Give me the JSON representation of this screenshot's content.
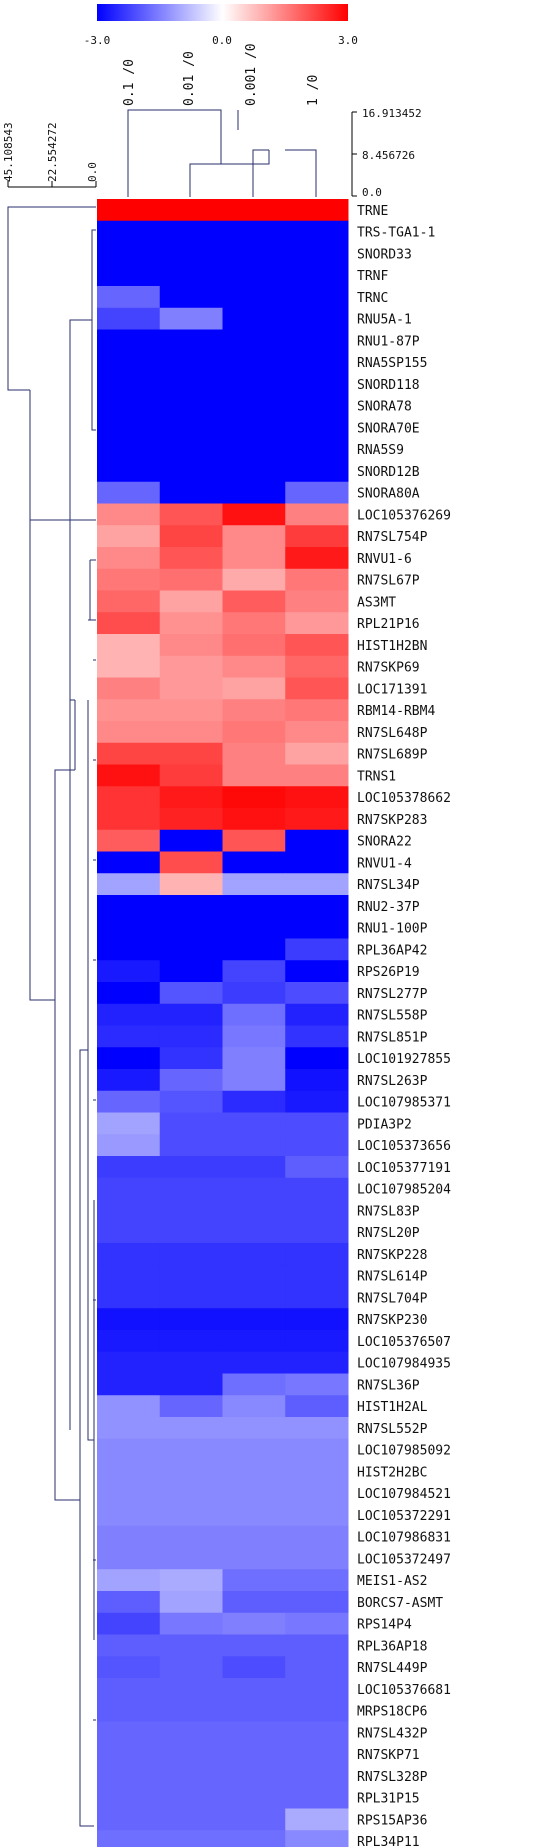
{
  "chart_data": {
    "type": "heatmap",
    "color_scale": {
      "min": -3.0,
      "mid": 0.0,
      "max": 3.0,
      "tick_labels": [
        "-3.0",
        "0.0",
        "3.0"
      ],
      "colors": {
        "low": "#0000ff",
        "mid": "#ffffff",
        "high": "#ff0000"
      }
    },
    "columns": [
      "0.1 /0",
      "0.01 /0",
      "0.001 /0",
      "1 /0"
    ],
    "col_dendrogram_ticks": [
      "16.913452",
      "8.456726",
      "0.0"
    ],
    "row_dendrogram_ticks": [
      "45.108543",
      "22.554272",
      "0.0"
    ],
    "rows": [
      "TRNE",
      "TRS-TGA1-1",
      "SNORD33",
      "TRNF",
      "TRNC",
      "RNU5A-1",
      "RNU1-87P",
      "RNA5SP155",
      "SNORD118",
      "SNORA78",
      "SNORA70E",
      "RNA5S9",
      "SNORD12B",
      "SNORA80A",
      "LOC105376269",
      "RN7SL754P",
      "RNVU1-6",
      "RN7SL67P",
      "AS3MT",
      "RPL21P16",
      "HIST1H2BN",
      "RN7SKP69",
      "LOC171391",
      "RBM14-RBM4",
      "RN7SL648P",
      "RN7SL689P",
      "TRNS1",
      "LOC105378662",
      "RN7SKP283",
      "SNORA22",
      "RNVU1-4",
      "RN7SL34P",
      "RNU2-37P",
      "RNU1-100P",
      "RPL36AP42",
      "RPS26P19",
      "RN7SL277P",
      "RN7SL558P",
      "RN7SL851P",
      "LOC101927855",
      "RN7SL263P",
      "LOC107985371",
      "PDIA3P2",
      "LOC105373656",
      "LOC105377191",
      "LOC107985204",
      "RN7SL83P",
      "RN7SL20P",
      "RN7SKP228",
      "RN7SL614P",
      "RN7SL704P",
      "RN7SKP230",
      "LOC105376507",
      "LOC107984935",
      "RN7SL36P",
      "HIST1H2AL",
      "RN7SL552P",
      "LOC107985092",
      "HIST2H2BC",
      "LOC107984521",
      "LOC105372291",
      "LOC107986831",
      "LOC105372497",
      "MEIS1-AS2",
      "BORCS7-ASMT",
      "RPS14P4",
      "RPL36AP18",
      "RN7SL449P",
      "LOC105376681",
      "MRPS18CP6",
      "RN7SL432P",
      "RN7SKP71",
      "RN7SL328P",
      "RPL31P15",
      "RPS15AP36",
      "RPL34P11"
    ],
    "values": [
      [
        3.0,
        3.0,
        3.0,
        3.0
      ],
      [
        -3.0,
        -3.0,
        -3.0,
        -3.0
      ],
      [
        -3.0,
        -3.0,
        -3.0,
        -3.0
      ],
      [
        -3.0,
        -3.0,
        -3.0,
        -3.0
      ],
      [
        -1.8,
        -3.0,
        -3.0,
        -3.0
      ],
      [
        -2.2,
        -1.5,
        -3.0,
        -3.0
      ],
      [
        -3.0,
        -3.0,
        -3.0,
        -3.0
      ],
      [
        -3.0,
        -3.0,
        -3.0,
        -3.0
      ],
      [
        -3.0,
        -3.0,
        -3.0,
        -3.0
      ],
      [
        -3.0,
        -3.0,
        -3.0,
        -3.0
      ],
      [
        -3.0,
        -3.0,
        -3.0,
        -3.0
      ],
      [
        -3.0,
        -3.0,
        -3.0,
        -3.0
      ],
      [
        -3.0,
        -3.0,
        -3.0,
        -3.0
      ],
      [
        -1.8,
        -3.0,
        -3.0,
        -1.8
      ],
      [
        1.4,
        2.0,
        2.8,
        1.5
      ],
      [
        1.1,
        2.2,
        1.4,
        2.3
      ],
      [
        1.4,
        2.0,
        1.4,
        2.7
      ],
      [
        1.6,
        1.7,
        1.0,
        1.6
      ],
      [
        1.8,
        1.1,
        1.9,
        1.5
      ],
      [
        2.1,
        1.3,
        1.6,
        1.2
      ],
      [
        0.9,
        1.4,
        1.7,
        2.0
      ],
      [
        0.9,
        1.2,
        1.4,
        1.8
      ],
      [
        1.5,
        1.2,
        1.1,
        2.0
      ],
      [
        1.3,
        1.3,
        1.5,
        1.6
      ],
      [
        1.4,
        1.4,
        1.6,
        1.4
      ],
      [
        2.2,
        2.2,
        1.5,
        1.1
      ],
      [
        2.8,
        2.3,
        1.5,
        1.5
      ],
      [
        2.4,
        2.7,
        2.9,
        2.8
      ],
      [
        2.4,
        2.6,
        2.8,
        2.7
      ],
      [
        1.9,
        -3.0,
        2.0,
        -3.0
      ],
      [
        -3.0,
        2.1,
        -3.0,
        -3.0
      ],
      [
        -1.1,
        0.9,
        -1.1,
        -1.1
      ],
      [
        -3.0,
        -3.0,
        -3.0,
        -3.0
      ],
      [
        -3.0,
        -3.0,
        -3.0,
        -3.0
      ],
      [
        -3.0,
        -3.0,
        -3.0,
        -2.3
      ],
      [
        -2.7,
        -3.0,
        -2.2,
        -3.0
      ],
      [
        -3.0,
        -2.0,
        -2.3,
        -2.1
      ],
      [
        -2.6,
        -2.6,
        -1.7,
        -2.6
      ],
      [
        -2.5,
        -2.5,
        -1.6,
        -2.4
      ],
      [
        -3.0,
        -2.4,
        -1.5,
        -3.0
      ],
      [
        -2.7,
        -1.8,
        -1.5,
        -2.8
      ],
      [
        -1.8,
        -2.0,
        -2.5,
        -2.7
      ],
      [
        -1.1,
        -2.1,
        -2.1,
        -2.1
      ],
      [
        -1.2,
        -2.1,
        -2.1,
        -2.1
      ],
      [
        -2.3,
        -2.3,
        -2.3,
        -1.9
      ],
      [
        -2.2,
        -2.2,
        -2.2,
        -2.2
      ],
      [
        -2.2,
        -2.2,
        -2.2,
        -2.2
      ],
      [
        -2.2,
        -2.2,
        -2.2,
        -2.2
      ],
      [
        -2.4,
        -2.4,
        -2.4,
        -2.4
      ],
      [
        -2.4,
        -2.4,
        -2.4,
        -2.4
      ],
      [
        -2.4,
        -2.4,
        -2.4,
        -2.4
      ],
      [
        -2.8,
        -2.8,
        -2.8,
        -2.8
      ],
      [
        -2.7,
        -2.7,
        -2.7,
        -2.7
      ],
      [
        -2.6,
        -2.6,
        -2.6,
        -2.6
      ],
      [
        -2.6,
        -2.6,
        -1.7,
        -1.6
      ],
      [
        -1.3,
        -1.8,
        -1.4,
        -1.9
      ],
      [
        -1.3,
        -1.3,
        -1.3,
        -1.3
      ],
      [
        -1.4,
        -1.4,
        -1.4,
        -1.4
      ],
      [
        -1.4,
        -1.4,
        -1.4,
        -1.4
      ],
      [
        -1.4,
        -1.4,
        -1.4,
        -1.4
      ],
      [
        -1.4,
        -1.4,
        -1.4,
        -1.4
      ],
      [
        -1.5,
        -1.5,
        -1.5,
        -1.5
      ],
      [
        -1.5,
        -1.5,
        -1.5,
        -1.5
      ],
      [
        -1.1,
        -1.0,
        -1.7,
        -1.7
      ],
      [
        -1.9,
        -1.1,
        -1.9,
        -1.9
      ],
      [
        -2.2,
        -1.6,
        -1.5,
        -1.6
      ],
      [
        -1.9,
        -1.9,
        -1.9,
        -1.9
      ],
      [
        -2.0,
        -1.9,
        -2.1,
        -1.9
      ],
      [
        -1.9,
        -1.9,
        -1.9,
        -1.9
      ],
      [
        -1.9,
        -1.9,
        -1.9,
        -1.9
      ],
      [
        -1.8,
        -1.8,
        -1.8,
        -1.8
      ],
      [
        -1.8,
        -1.8,
        -1.8,
        -1.8
      ],
      [
        -1.8,
        -1.8,
        -1.8,
        -1.8
      ],
      [
        -1.8,
        -1.8,
        -1.8,
        -1.8
      ],
      [
        -1.8,
        -1.8,
        -1.8,
        -1.0
      ],
      [
        -1.7,
        -1.7,
        -1.7,
        -1.4
      ]
    ]
  }
}
